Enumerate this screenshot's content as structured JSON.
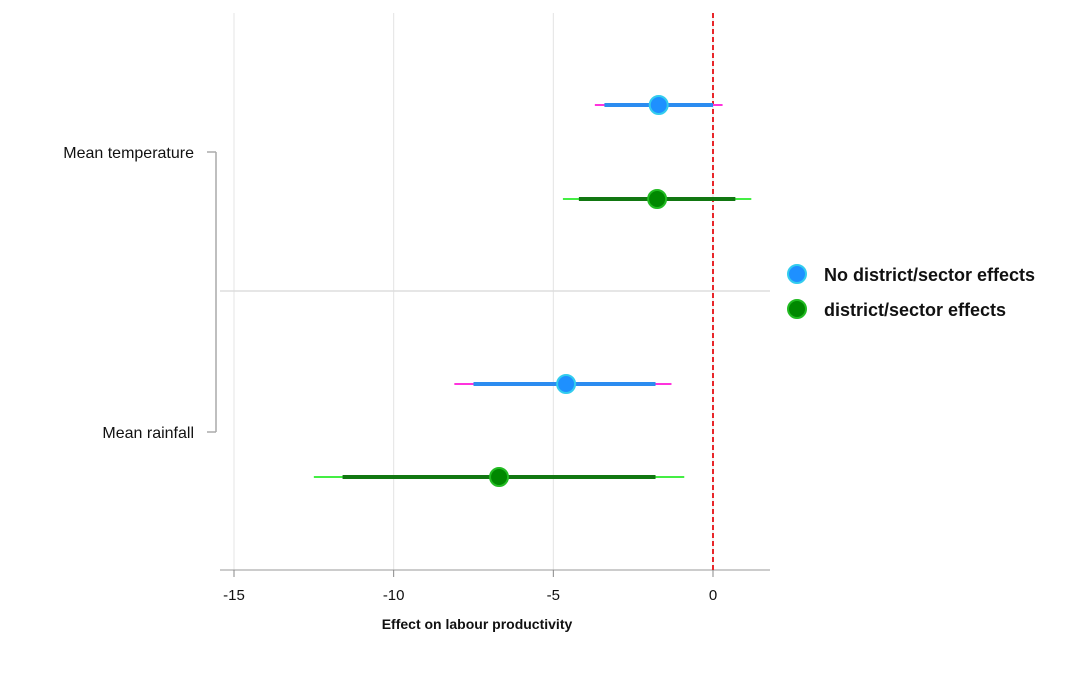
{
  "chart_data": {
    "type": "coefficient-plot",
    "xlabel": "Effect on labour productivity",
    "ylabel": "",
    "xlim": [
      -15,
      1.7
    ],
    "xticks": [
      -15,
      -10,
      -5,
      0
    ],
    "xtick_labels": [
      "-15",
      "-10",
      "-5",
      "0"
    ],
    "reference_line": {
      "x": 0,
      "color": "#e8262a",
      "style": "dashed"
    },
    "grid": true,
    "legend_position": "right",
    "categories": [
      "Mean temperature",
      "Mean rainfall"
    ],
    "series": [
      {
        "name": "No district/sector effects",
        "marker_color": "#1e90ff",
        "marker_edge": "#33ccee",
        "ci_inner_color": "#2b8cf0",
        "ci_outer_color": "#ff33dd",
        "points": [
          {
            "category": "Mean temperature",
            "estimate": -1.7,
            "ci_inner": [
              -3.4,
              0.0
            ],
            "ci_outer": [
              -3.7,
              0.3
            ]
          },
          {
            "category": "Mean rainfall",
            "estimate": -4.6,
            "ci_inner": [
              -7.5,
              -1.8
            ],
            "ci_outer": [
              -8.1,
              -1.3
            ]
          }
        ]
      },
      {
        "name": "district/sector effects",
        "marker_color": "#008800",
        "marker_edge": "#22bb22",
        "ci_inner_color": "#117711",
        "ci_outer_color": "#44ee44",
        "points": [
          {
            "category": "Mean temperature",
            "estimate": -1.75,
            "ci_inner": [
              -4.2,
              0.7
            ],
            "ci_outer": [
              -4.7,
              1.2
            ]
          },
          {
            "category": "Mean rainfall",
            "estimate": -6.7,
            "ci_inner": [
              -11.6,
              -1.8
            ],
            "ci_outer": [
              -12.5,
              -0.9
            ]
          }
        ]
      }
    ]
  }
}
